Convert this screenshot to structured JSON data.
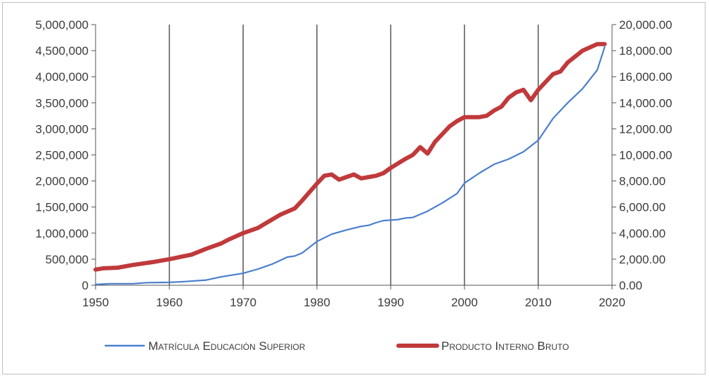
{
  "chart_data": {
    "type": "line",
    "title": "",
    "xlabel": "",
    "ylabel": "",
    "xlim": [
      1950,
      2020
    ],
    "x_ticks": [
      "1950",
      "1960",
      "1970",
      "1980",
      "1990",
      "2000",
      "2010",
      "2020"
    ],
    "y_left": {
      "lim": [
        0,
        5000000
      ],
      "ticks": [
        "0",
        "500,000",
        "1,000,000",
        "1,500,000",
        "2,000,000",
        "2,500,000",
        "3,000,000",
        "3,500,000",
        "4,000,000",
        "4,500,000",
        "5,000,000"
      ]
    },
    "y_right": {
      "lim": [
        0,
        20000
      ],
      "ticks": [
        "0.00",
        "2,000.00",
        "4,000.00",
        "6,000.00",
        "8,000.00",
        "10,000.00",
        "12,000.00",
        "14,000.00",
        "16,000.00",
        "18,000.00",
        "20,000.00"
      ]
    },
    "grid": "vertical lines at x ticks",
    "legend_position": "bottom",
    "series": [
      {
        "name": "Matrícula Educación Superior",
        "axis": "left",
        "color": "#4a7fce",
        "x": [
          1950,
          1952,
          1955,
          1957,
          1960,
          1962,
          1965,
          1967,
          1970,
          1972,
          1974,
          1976,
          1977,
          1978,
          1980,
          1982,
          1984,
          1986,
          1987,
          1988,
          1989,
          1990,
          1991,
          1992,
          1993,
          1995,
          1997,
          1999,
          2000,
          2002,
          2004,
          2006,
          2008,
          2010,
          2012,
          2014,
          2016,
          2018,
          2019
        ],
        "y": [
          15000,
          30000,
          30000,
          50000,
          55000,
          70000,
          100000,
          160000,
          230000,
          310000,
          410000,
          540000,
          560000,
          620000,
          840000,
          980000,
          1060000,
          1130000,
          1150000,
          1200000,
          1240000,
          1250000,
          1260000,
          1290000,
          1300000,
          1420000,
          1580000,
          1760000,
          1960000,
          2150000,
          2320000,
          2420000,
          2560000,
          2780000,
          3200000,
          3500000,
          3770000,
          4130000,
          4570000
        ]
      },
      {
        "name": "Producto Interno Bruto",
        "axis": "right",
        "color": "#c0393b",
        "x": [
          1950,
          1951,
          1953,
          1955,
          1958,
          1960,
          1963,
          1965,
          1967,
          1968,
          1970,
          1972,
          1975,
          1977,
          1978,
          1980,
          1981,
          1982,
          1983,
          1984,
          1985,
          1986,
          1987,
          1988,
          1989,
          1990,
          1992,
          1993,
          1994,
          1995,
          1996,
          1998,
          1999,
          2000,
          2001,
          2002,
          2003,
          2004,
          2005,
          2006,
          2007,
          2008,
          2009,
          2010,
          2012,
          2013,
          2014,
          2016,
          2018,
          2019
        ],
        "y": [
          1200,
          1300,
          1350,
          1550,
          1800,
          2000,
          2350,
          2800,
          3200,
          3500,
          4000,
          4400,
          5400,
          5900,
          6500,
          7800,
          8400,
          8500,
          8100,
          8300,
          8500,
          8200,
          8300,
          8400,
          8600,
          9000,
          9700,
          10000,
          10600,
          10100,
          11000,
          12200,
          12600,
          12900,
          12900,
          12900,
          13000,
          13400,
          13700,
          14400,
          14800,
          15000,
          14200,
          15000,
          16200,
          16400,
          17100,
          18000,
          18500,
          18500
        ]
      }
    ]
  }
}
